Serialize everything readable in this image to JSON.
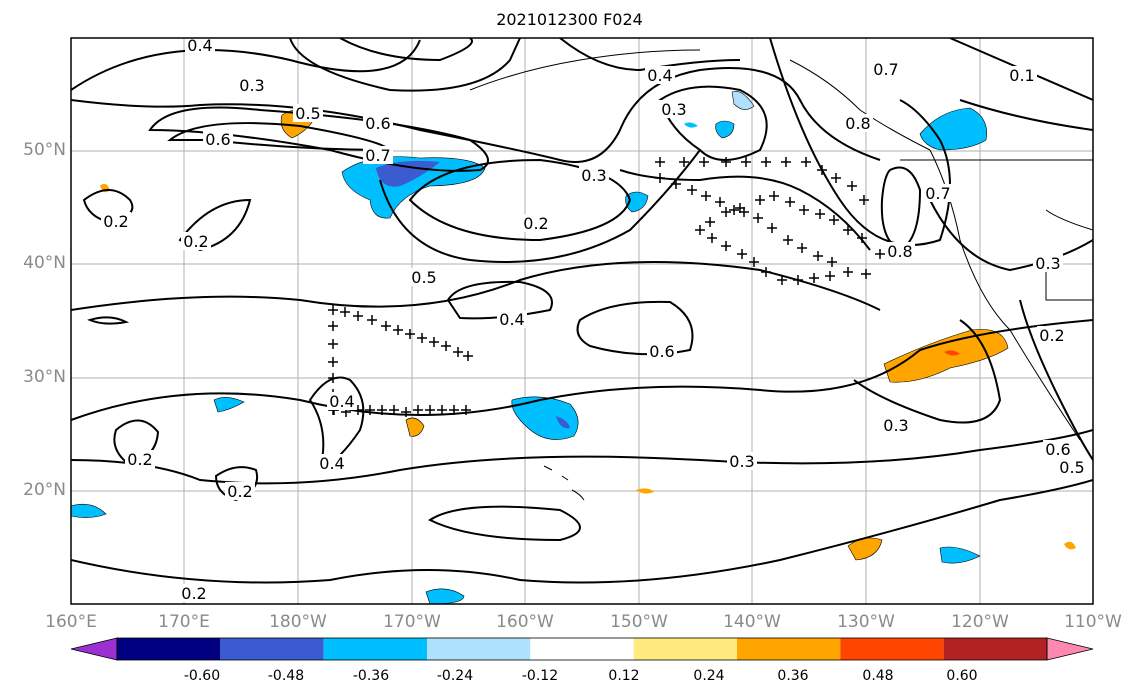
{
  "title": "2021012300 F024",
  "lon_ticks": [
    "160°E",
    "170°E",
    "180°W",
    "170°W",
    "160°W",
    "150°W",
    "140°W",
    "130°W",
    "120°W",
    "110°W"
  ],
  "lat_ticks": [
    "50°N",
    "40°N",
    "30°N",
    "20°N"
  ],
  "colorbar": {
    "colors": [
      "#9b30d0",
      "#000080",
      "#3b5bd0",
      "#00bfff",
      "#aee1fb",
      "#ffffff",
      "#ffeb80",
      "#ffa500",
      "#ff4500",
      "#b22222",
      "#ff88b0"
    ],
    "labels": [
      "-0.60",
      "-0.48",
      "-0.36",
      "-0.24",
      "-0.12",
      "0.12",
      "0.24",
      "0.36",
      "0.48",
      "0.60"
    ]
  },
  "contour_labels": [
    "0.4",
    "0.3",
    "0.5",
    "0.6",
    "0.6",
    "0.7",
    "0.2",
    "0.2",
    "0.3",
    "0.2",
    "0.5",
    "0.4",
    "0.6",
    "0.4",
    "0.4",
    "0.2",
    "0.2",
    "0.3",
    "0.3",
    "0.4",
    "0.3",
    "0.7",
    "0.8",
    "0.7",
    "0.8",
    "0.1",
    "0.3",
    "0.2",
    "0.6",
    "0.5",
    "0.2"
  ],
  "shading_colors": {
    "pos_low": "#ffeb80",
    "pos_mid": "#ffa500",
    "pos_high": "#ff4500",
    "neg_low": "#aee1fb",
    "neg_mid": "#00bfff",
    "neg_high": "#3b5bd0"
  }
}
